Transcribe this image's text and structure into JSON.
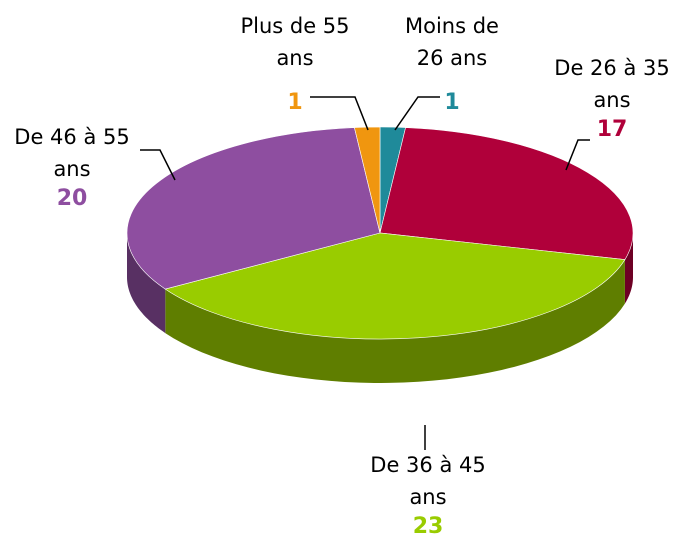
{
  "chart_data": {
    "type": "pie",
    "categories": [
      "Moins de 26 ans",
      "De 26 à 35 ans",
      "De 36 à 45 ans",
      "De 46 à 55 ans",
      "Plus de 55 ans"
    ],
    "values": [
      1,
      17,
      23,
      20,
      1
    ],
    "colors": [
      "#1f8a9a",
      "#b0003a",
      "#99cc00",
      "#8e4ea0",
      "#f0960f"
    ]
  }
}
